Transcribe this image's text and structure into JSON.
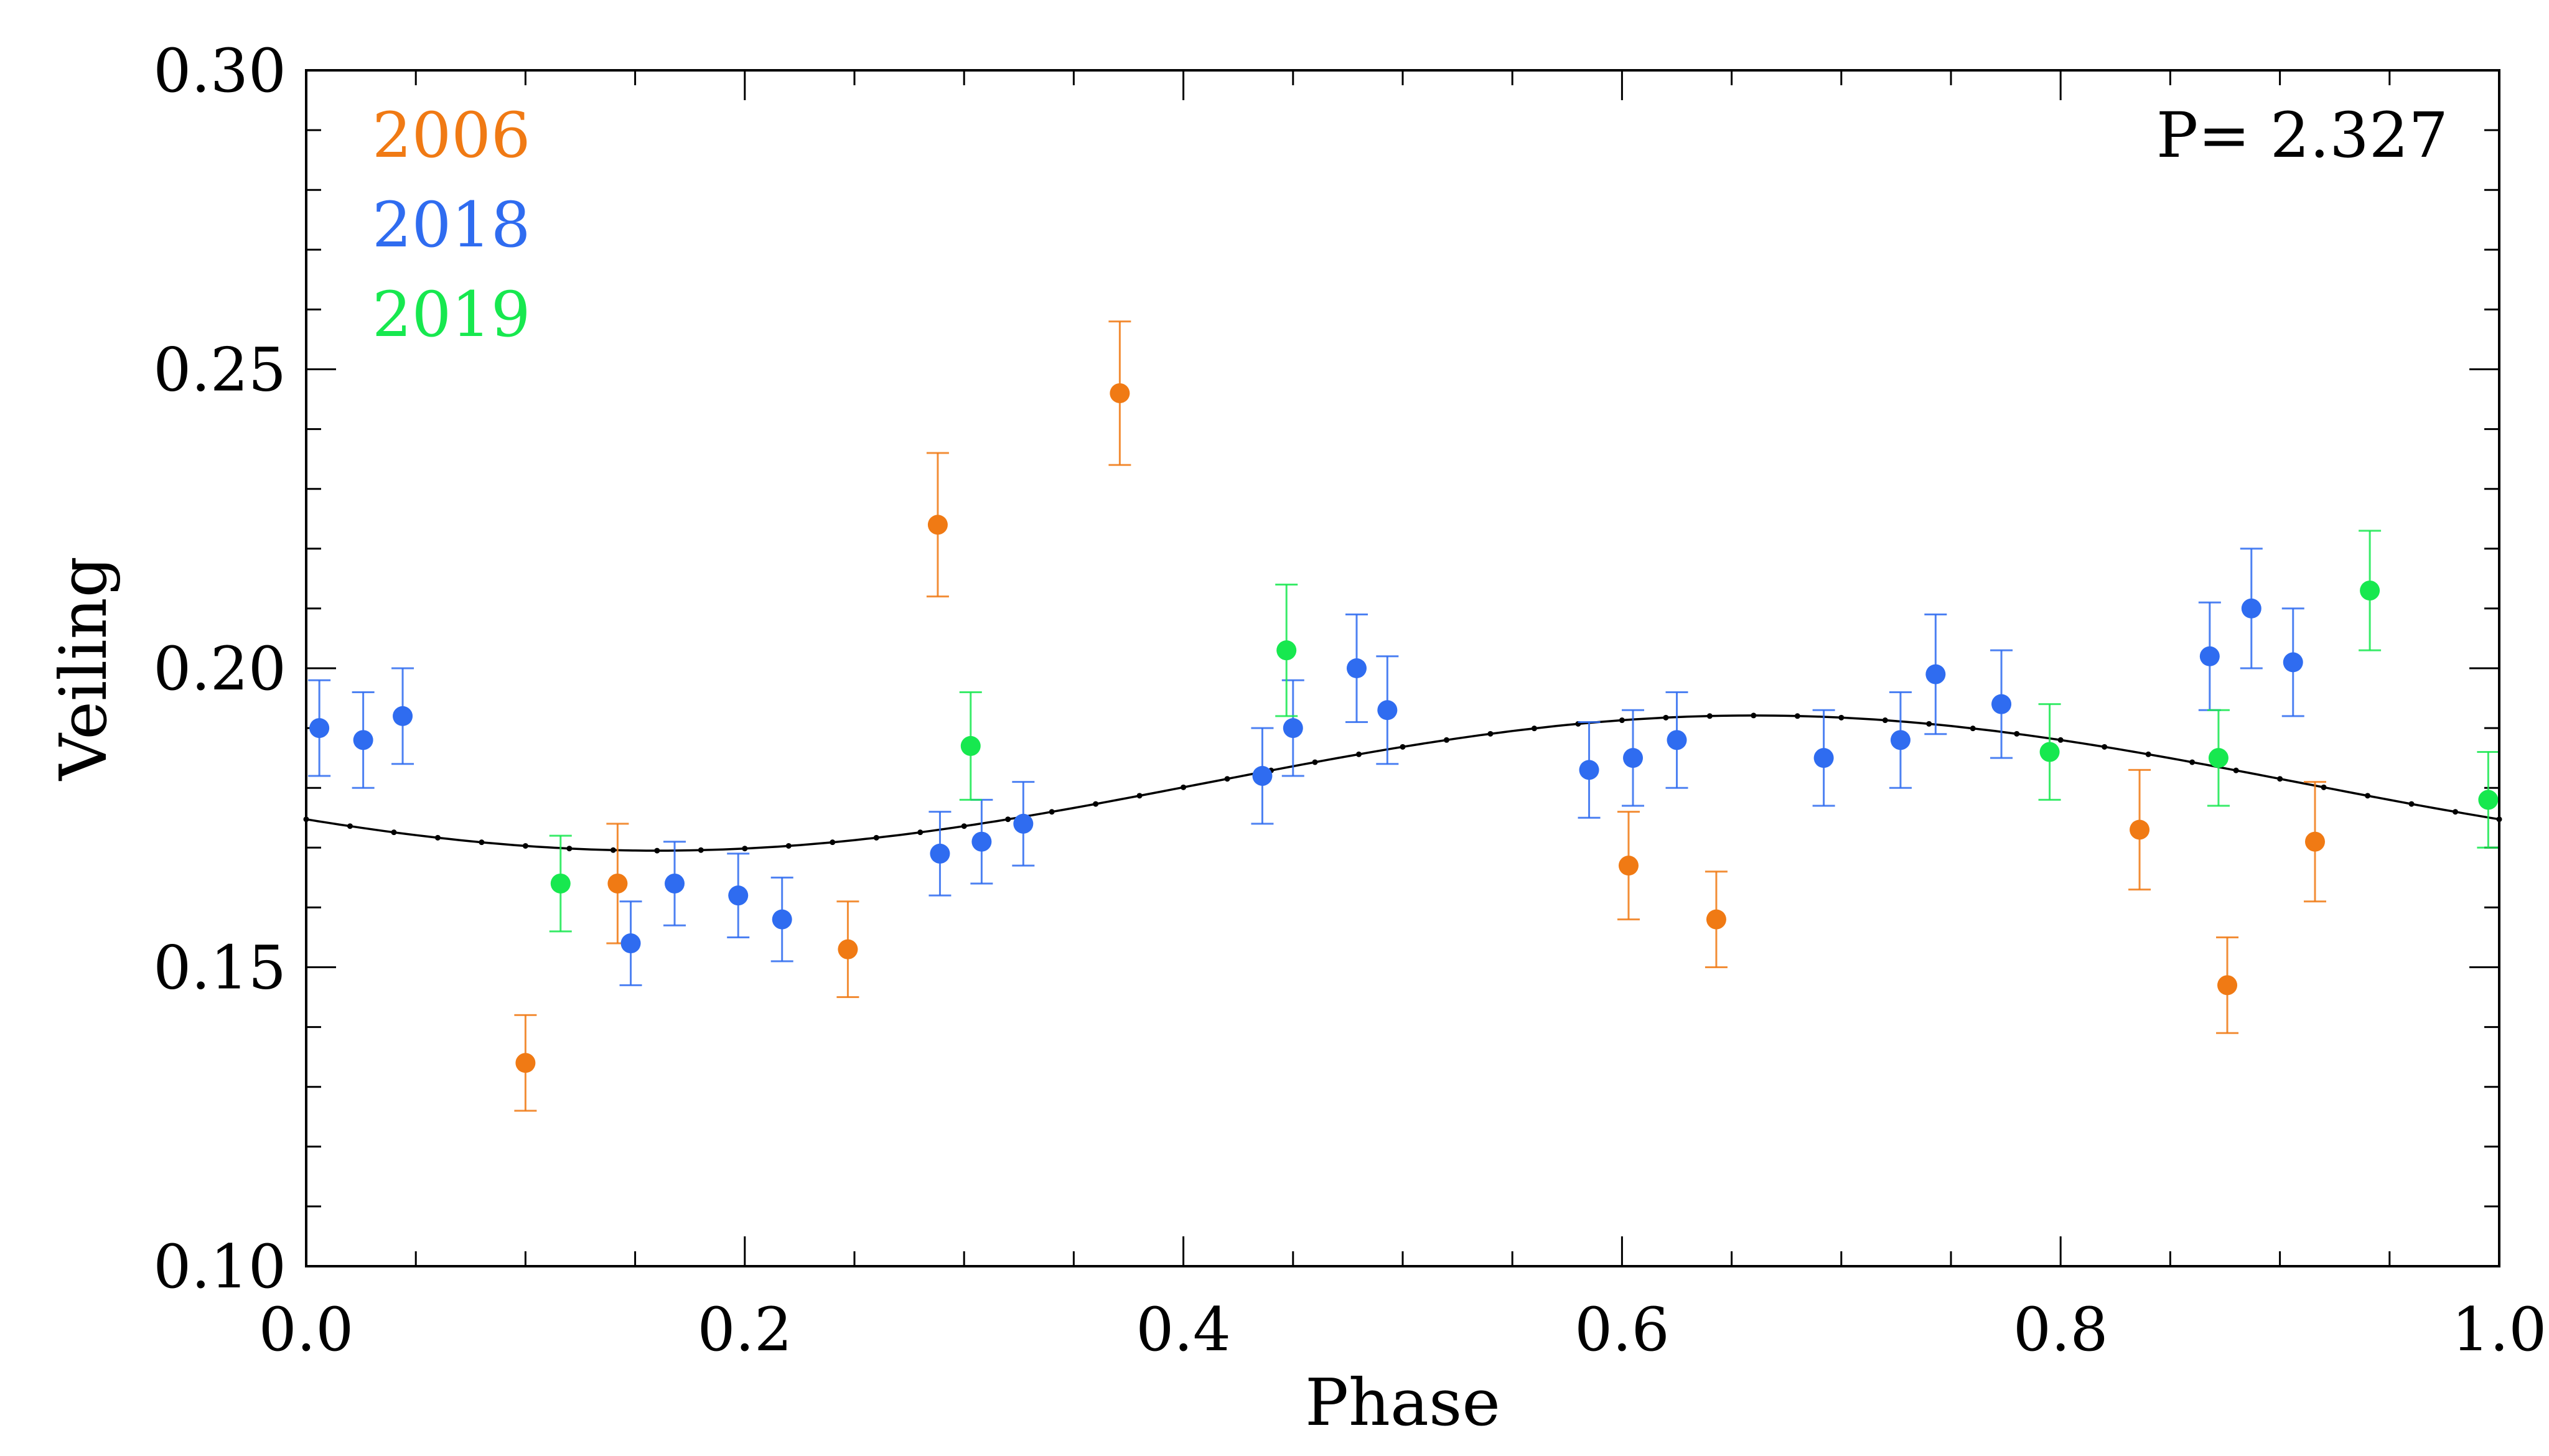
{
  "chart_data": {
    "type": "scatter",
    "title": "",
    "xlabel": "Phase",
    "ylabel": "Veiling",
    "xlim": [
      0.0,
      1.0
    ],
    "ylim": [
      0.1,
      0.3
    ],
    "xticks": [
      "0.0",
      "0.2",
      "0.4",
      "0.6",
      "0.8",
      "1.0"
    ],
    "yticks": [
      "0.10",
      "0.15",
      "0.20",
      "0.25",
      "0.30"
    ],
    "annotation": "P= 2.327",
    "legend_position": "top-left",
    "series": [
      {
        "name": "2006",
        "color": "#f07a14",
        "points": [
          {
            "x": 0.1,
            "y": 0.134,
            "err": 0.008
          },
          {
            "x": 0.142,
            "y": 0.164,
            "err": 0.01
          },
          {
            "x": 0.247,
            "y": 0.153,
            "err": 0.008
          },
          {
            "x": 0.288,
            "y": 0.224,
            "err": 0.012
          },
          {
            "x": 0.371,
            "y": 0.246,
            "err": 0.012
          },
          {
            "x": 0.603,
            "y": 0.167,
            "err": 0.009
          },
          {
            "x": 0.643,
            "y": 0.158,
            "err": 0.008
          },
          {
            "x": 0.836,
            "y": 0.173,
            "err": 0.01
          },
          {
            "x": 0.876,
            "y": 0.147,
            "err": 0.008
          },
          {
            "x": 0.916,
            "y": 0.171,
            "err": 0.01
          }
        ]
      },
      {
        "name": "2018",
        "color": "#2f6cf0",
        "points": [
          {
            "x": 0.006,
            "y": 0.19,
            "err": 0.008
          },
          {
            "x": 0.026,
            "y": 0.188,
            "err": 0.008
          },
          {
            "x": 0.044,
            "y": 0.192,
            "err": 0.008
          },
          {
            "x": 0.148,
            "y": 0.154,
            "err": 0.007
          },
          {
            "x": 0.168,
            "y": 0.164,
            "err": 0.007
          },
          {
            "x": 0.197,
            "y": 0.162,
            "err": 0.007
          },
          {
            "x": 0.217,
            "y": 0.158,
            "err": 0.007
          },
          {
            "x": 0.289,
            "y": 0.169,
            "err": 0.007
          },
          {
            "x": 0.308,
            "y": 0.171,
            "err": 0.007
          },
          {
            "x": 0.327,
            "y": 0.174,
            "err": 0.007
          },
          {
            "x": 0.436,
            "y": 0.182,
            "err": 0.008
          },
          {
            "x": 0.45,
            "y": 0.19,
            "err": 0.008
          },
          {
            "x": 0.479,
            "y": 0.2,
            "err": 0.009
          },
          {
            "x": 0.493,
            "y": 0.193,
            "err": 0.009
          },
          {
            "x": 0.585,
            "y": 0.183,
            "err": 0.008
          },
          {
            "x": 0.605,
            "y": 0.185,
            "err": 0.008
          },
          {
            "x": 0.625,
            "y": 0.188,
            "err": 0.008
          },
          {
            "x": 0.692,
            "y": 0.185,
            "err": 0.008
          },
          {
            "x": 0.727,
            "y": 0.188,
            "err": 0.008
          },
          {
            "x": 0.743,
            "y": 0.199,
            "err": 0.01
          },
          {
            "x": 0.773,
            "y": 0.194,
            "err": 0.009
          },
          {
            "x": 0.868,
            "y": 0.202,
            "err": 0.009
          },
          {
            "x": 0.887,
            "y": 0.21,
            "err": 0.01
          },
          {
            "x": 0.906,
            "y": 0.201,
            "err": 0.009
          }
        ]
      },
      {
        "name": "2019",
        "color": "#17e84f",
        "points": [
          {
            "x": 0.116,
            "y": 0.164,
            "err": 0.008
          },
          {
            "x": 0.303,
            "y": 0.187,
            "err": 0.009
          },
          {
            "x": 0.447,
            "y": 0.203,
            "err": 0.011
          },
          {
            "x": 0.795,
            "y": 0.186,
            "err": 0.008
          },
          {
            "x": 0.872,
            "y": 0.185,
            "err": 0.008
          },
          {
            "x": 0.941,
            "y": 0.213,
            "err": 0.01
          },
          {
            "x": 0.995,
            "y": 0.178,
            "err": 0.008
          }
        ]
      }
    ],
    "model": {
      "name": "sinusoidal fit",
      "color": "#000000",
      "mean": 0.1808,
      "amplitude": 0.0113,
      "phase_of_max": 0.66
    }
  }
}
